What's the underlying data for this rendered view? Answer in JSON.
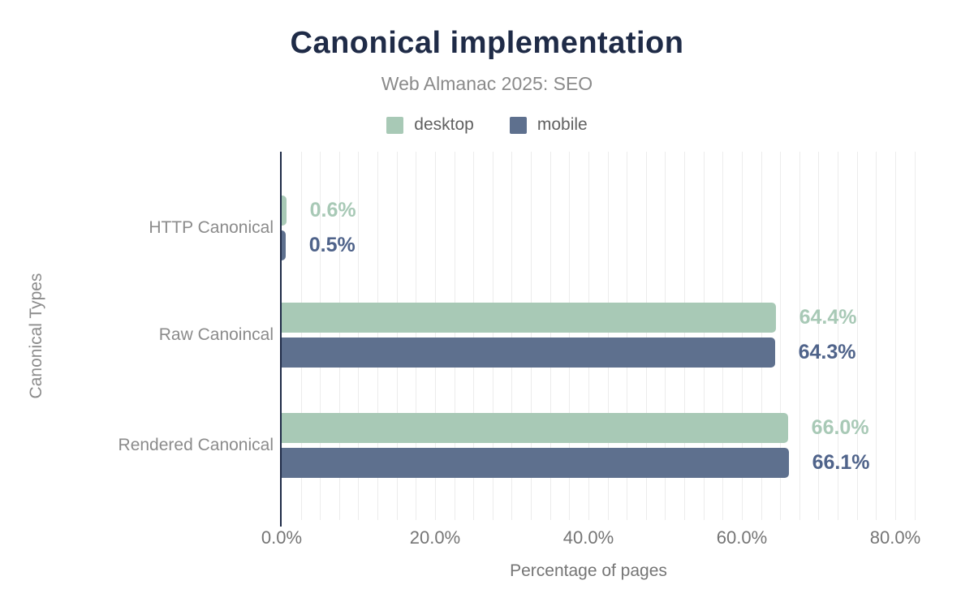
{
  "chart_data": {
    "type": "bar",
    "orientation": "horizontal",
    "title": "Canonical implementation",
    "subtitle": "Web Almanac 2025: SEO",
    "categories": [
      "HTTP Canonical",
      "Raw Canoincal",
      "Rendered Canonical"
    ],
    "series": [
      {
        "name": "desktop",
        "color": "#a8c9b6",
        "label_color": "#a8c9b6",
        "values": [
          0.6,
          64.4,
          66.0
        ],
        "labels": [
          "0.6%",
          "64.4%",
          "66.0%"
        ]
      },
      {
        "name": "mobile",
        "color": "#5e708e",
        "label_color": "#4f638a",
        "values": [
          0.5,
          64.3,
          66.1
        ],
        "labels": [
          "0.5%",
          "64.3%",
          "66.1%"
        ]
      }
    ],
    "xlabel": "Percentage of pages",
    "ylabel": "Canonical Types",
    "x_axis": {
      "max": 83.6,
      "ticks": [
        {
          "label": "0.0%",
          "value": 0
        },
        {
          "label": "20.0%",
          "value": 20
        },
        {
          "label": "40.0%",
          "value": 40
        },
        {
          "label": "60.0%",
          "value": 60
        },
        {
          "label": "80.0%",
          "value": 80
        }
      ]
    },
    "grid": {
      "spacing_percent": 2.5,
      "color": "#ececec",
      "shown": true
    },
    "legend_position": "top",
    "colors": {
      "title": "#1f2b47",
      "subtitle": "#8a8a8a",
      "axis_line": "#1f2b47",
      "tick_label": "#757575",
      "category_label": "#8b8b8b",
      "legend_label": "#616161"
    }
  }
}
